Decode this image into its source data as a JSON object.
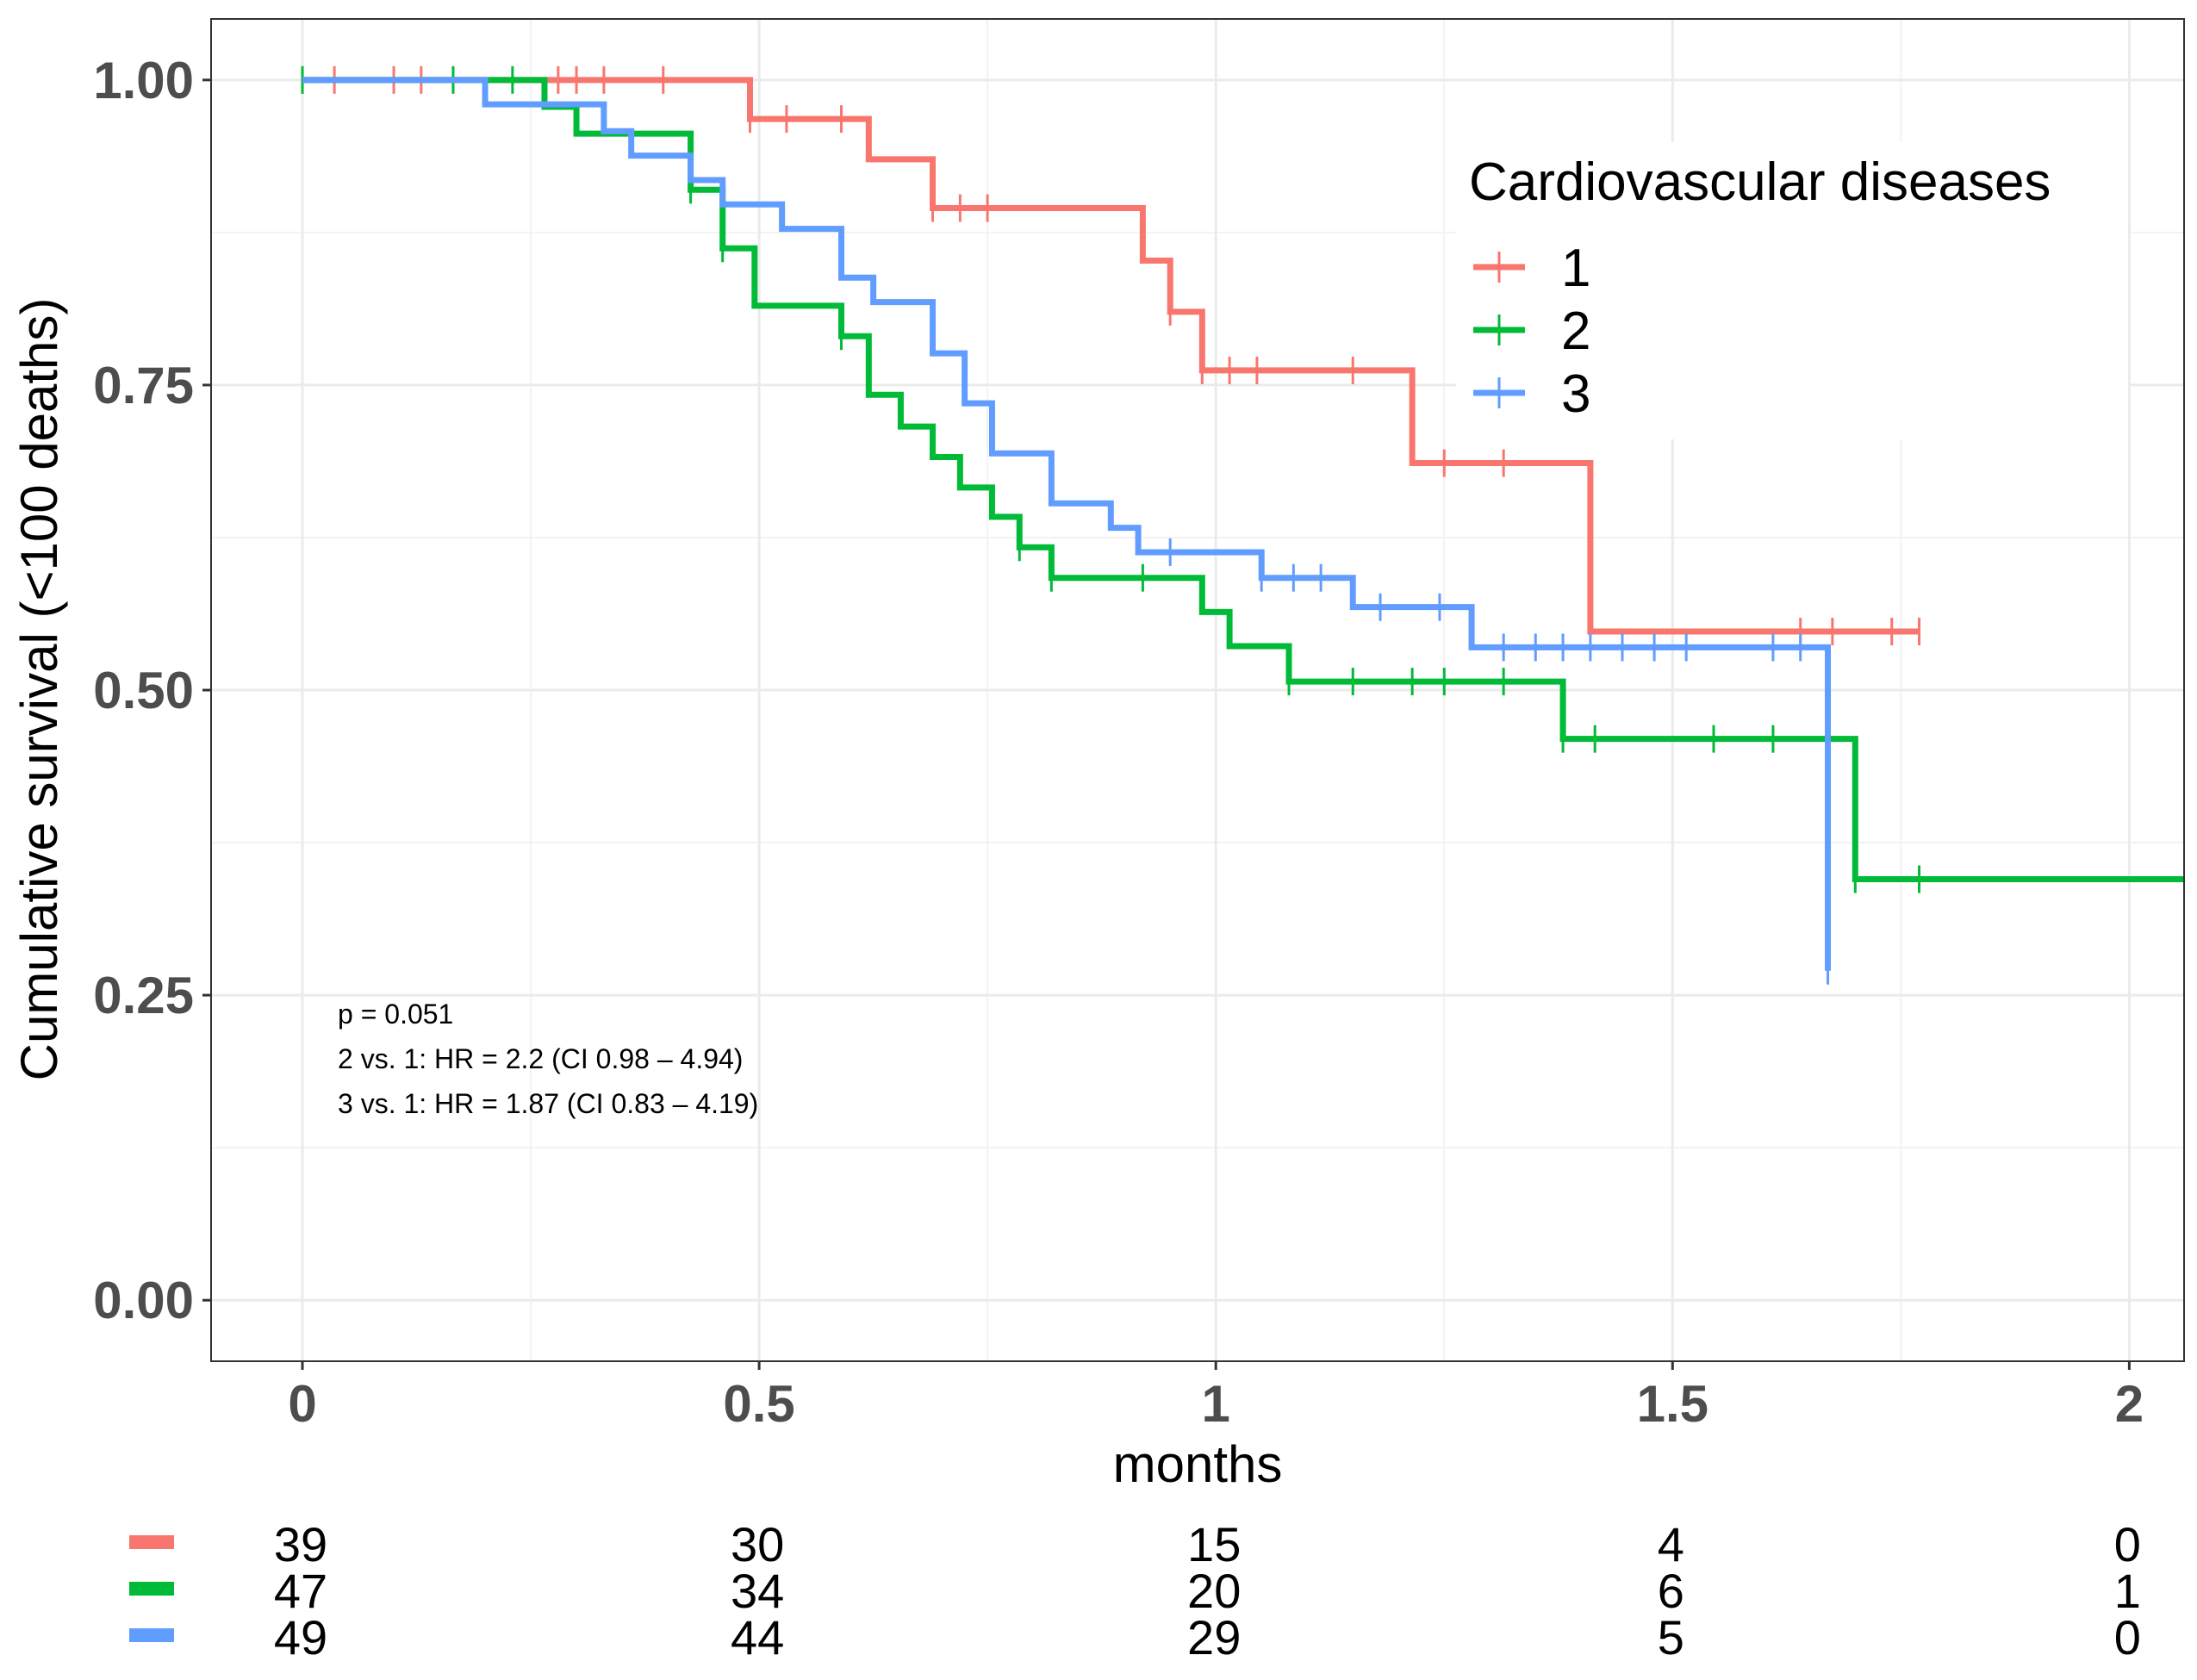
{
  "chart_data": {
    "type": "line",
    "subtype": "kaplan-meier step",
    "xlabel": "months",
    "ylabel": "Cumulative survival (<100 deaths)",
    "xlim": [
      -0.1,
      2.06
    ],
    "ylim": [
      -0.05,
      1.05
    ],
    "x_ticks": [
      0,
      0.5,
      1,
      1.5,
      2
    ],
    "x_tick_labels": [
      "0",
      "0.5",
      "1",
      "1.5",
      "2"
    ],
    "y_ticks": [
      0,
      0.25,
      0.5,
      0.75,
      1
    ],
    "y_tick_labels": [
      "0.00",
      "0.25",
      "0.50",
      "0.75",
      "1.00"
    ],
    "grid": true,
    "legend": {
      "title": "Cardiovascular diseases",
      "position": "top-right",
      "entries": [
        "1",
        "2",
        "3"
      ]
    },
    "annotations": [
      "p = 0.051",
      "2 vs. 1: HR = 2.2 (CI 0.98 – 4.94)",
      "3 vs. 1: HR = 1.87 (CI 0.83 – 4.19)"
    ],
    "series": [
      {
        "name": "1",
        "color": "#F8766D",
        "steps": [
          [
            0,
            1.0
          ],
          [
            0.49,
            0.968
          ],
          [
            0.62,
            0.935
          ],
          [
            0.69,
            0.895
          ],
          [
            0.92,
            0.852
          ],
          [
            0.95,
            0.81
          ],
          [
            0.985,
            0.762
          ],
          [
            1.215,
            0.686
          ],
          [
            1.41,
            0.548
          ],
          [
            1.77,
            0.548
          ]
        ],
        "censors": [
          [
            0,
            1.0
          ],
          [
            0.035,
            1.0
          ],
          [
            0.1,
            1.0
          ],
          [
            0.13,
            1.0
          ],
          [
            0.28,
            1.0
          ],
          [
            0.3,
            1.0
          ],
          [
            0.33,
            1.0
          ],
          [
            0.395,
            1.0
          ],
          [
            0.49,
            0.968
          ],
          [
            0.53,
            0.968
          ],
          [
            0.59,
            0.968
          ],
          [
            0.69,
            0.895
          ],
          [
            0.72,
            0.895
          ],
          [
            0.75,
            0.895
          ],
          [
            0.95,
            0.81
          ],
          [
            0.985,
            0.762
          ],
          [
            1.015,
            0.762
          ],
          [
            1.045,
            0.762
          ],
          [
            1.15,
            0.762
          ],
          [
            1.25,
            0.686
          ],
          [
            1.315,
            0.686
          ],
          [
            1.64,
            0.548
          ],
          [
            1.675,
            0.548
          ],
          [
            1.74,
            0.548
          ],
          [
            1.77,
            0.548
          ]
        ]
      },
      {
        "name": "2",
        "color": "#00BA38",
        "steps": [
          [
            0,
            1.0
          ],
          [
            0.265,
            0.978
          ],
          [
            0.3,
            0.956
          ],
          [
            0.425,
            0.91
          ],
          [
            0.46,
            0.862
          ],
          [
            0.495,
            0.815
          ],
          [
            0.59,
            0.79
          ],
          [
            0.62,
            0.742
          ],
          [
            0.655,
            0.716
          ],
          [
            0.69,
            0.691
          ],
          [
            0.72,
            0.666
          ],
          [
            0.755,
            0.642
          ],
          [
            0.785,
            0.617
          ],
          [
            0.82,
            0.592
          ],
          [
            0.985,
            0.564
          ],
          [
            1.015,
            0.536
          ],
          [
            1.08,
            0.507
          ],
          [
            1.38,
            0.46
          ],
          [
            1.7,
            0.345
          ],
          [
            2.06,
            0.345
          ]
        ],
        "censors": [
          [
            0,
            1.0
          ],
          [
            0.165,
            1.0
          ],
          [
            0.23,
            1.0
          ],
          [
            0.425,
            0.91
          ],
          [
            0.46,
            0.862
          ],
          [
            0.59,
            0.79
          ],
          [
            0.785,
            0.617
          ],
          [
            0.82,
            0.592
          ],
          [
            0.92,
            0.592
          ],
          [
            1.08,
            0.507
          ],
          [
            1.15,
            0.507
          ],
          [
            1.215,
            0.507
          ],
          [
            1.25,
            0.507
          ],
          [
            1.315,
            0.507
          ],
          [
            1.38,
            0.46
          ],
          [
            1.415,
            0.46
          ],
          [
            1.545,
            0.46
          ],
          [
            1.61,
            0.46
          ],
          [
            1.7,
            0.345
          ],
          [
            1.77,
            0.345
          ]
        ]
      },
      {
        "name": "3",
        "color": "#619CFF",
        "steps": [
          [
            0,
            1.0
          ],
          [
            0.2,
            0.98
          ],
          [
            0.33,
            0.958
          ],
          [
            0.36,
            0.938
          ],
          [
            0.425,
            0.918
          ],
          [
            0.46,
            0.898
          ],
          [
            0.525,
            0.878
          ],
          [
            0.59,
            0.838
          ],
          [
            0.625,
            0.818
          ],
          [
            0.69,
            0.776
          ],
          [
            0.725,
            0.735
          ],
          [
            0.755,
            0.694
          ],
          [
            0.82,
            0.653
          ],
          [
            0.885,
            0.633
          ],
          [
            0.915,
            0.613
          ],
          [
            1.05,
            0.592
          ],
          [
            1.15,
            0.568
          ],
          [
            1.28,
            0.535
          ],
          [
            1.67,
            0.27
          ]
        ],
        "censors": [
          [
            0.95,
            0.613
          ],
          [
            1.05,
            0.592
          ],
          [
            1.085,
            0.592
          ],
          [
            1.115,
            0.592
          ],
          [
            1.18,
            0.568
          ],
          [
            1.245,
            0.568
          ],
          [
            1.315,
            0.535
          ],
          [
            1.35,
            0.535
          ],
          [
            1.38,
            0.535
          ],
          [
            1.41,
            0.535
          ],
          [
            1.445,
            0.535
          ],
          [
            1.48,
            0.535
          ],
          [
            1.515,
            0.535
          ],
          [
            1.61,
            0.535
          ],
          [
            1.64,
            0.535
          ],
          [
            1.67,
            0.27
          ]
        ]
      }
    ],
    "risk_table": {
      "times": [
        0,
        0.5,
        1,
        1.5,
        2
      ],
      "rows": [
        {
          "name": "1",
          "color": "#F8766D",
          "counts": [
            "39",
            "30",
            "15",
            "4",
            "0"
          ]
        },
        {
          "name": "2",
          "color": "#00BA38",
          "counts": [
            "47",
            "34",
            "20",
            "6",
            "1"
          ]
        },
        {
          "name": "3",
          "color": "#619CFF",
          "counts": [
            "49",
            "44",
            "29",
            "5",
            "0"
          ]
        }
      ]
    }
  }
}
